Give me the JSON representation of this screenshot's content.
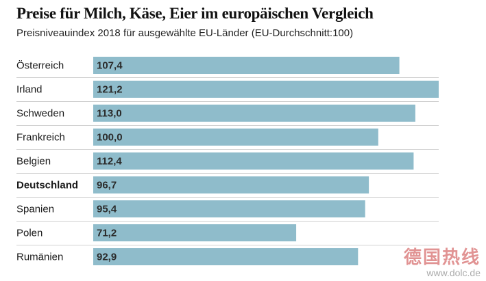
{
  "header": {
    "title": "Preise für Milch, Käse, Eier im europäischen Vergleich",
    "subtitle": "Preisniveauindex 2018 für ausgewählte EU-Länder (EU-Durchschnitt:100)"
  },
  "chart_data": {
    "type": "bar",
    "orientation": "horizontal",
    "title": "Preise für Milch, Käse, Eier im europäischen Vergleich",
    "subtitle": "Preisniveauindex 2018 für ausgewählte EU-Länder (EU-Durchschnitt:100)",
    "xlabel": "",
    "ylabel": "",
    "xlim": [
      0,
      121.2
    ],
    "grid": false,
    "categories": [
      "Österreich",
      "Irland",
      "Schweden",
      "Frankreich",
      "Belgien",
      "Deutschland",
      "Spanien",
      "Polen",
      "Rumänien"
    ],
    "values": [
      107.4,
      121.2,
      113.0,
      100.0,
      112.4,
      96.7,
      95.4,
      71.2,
      92.9
    ],
    "value_labels": [
      "107,4",
      "121,2",
      "113,0",
      "100,0",
      "112,4",
      "96,7",
      "95,4",
      "71,2",
      "92,9"
    ],
    "highlighted": [
      "Deutschland"
    ],
    "bar_color": "#8fbccb"
  },
  "watermark": {
    "text": "德国热线",
    "url": "www.dolc.de"
  }
}
